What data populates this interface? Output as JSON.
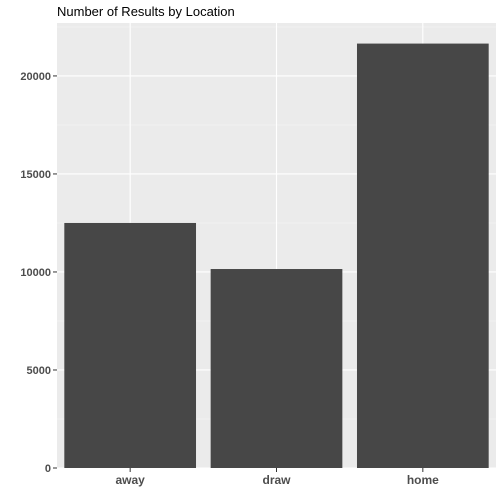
{
  "chart_data": {
    "type": "bar",
    "title": "Number of Results by Location",
    "xlabel": "",
    "ylabel": "",
    "categories": [
      "away",
      "draw",
      "home"
    ],
    "values": [
      12500,
      10150,
      21650
    ],
    "ylim": [
      0,
      22700
    ],
    "yticks": [
      0,
      5000,
      10000,
      15000,
      20000
    ],
    "ytick_labels": [
      "0",
      "5000",
      "10000",
      "15000",
      "20000"
    ],
    "grid": true,
    "legend": "none",
    "colors": {
      "bar": "#474747",
      "panel": "#ebebeb",
      "grid_major": "#ffffff",
      "grid_minor": "#f5f5f5",
      "tick": "#333333"
    }
  }
}
